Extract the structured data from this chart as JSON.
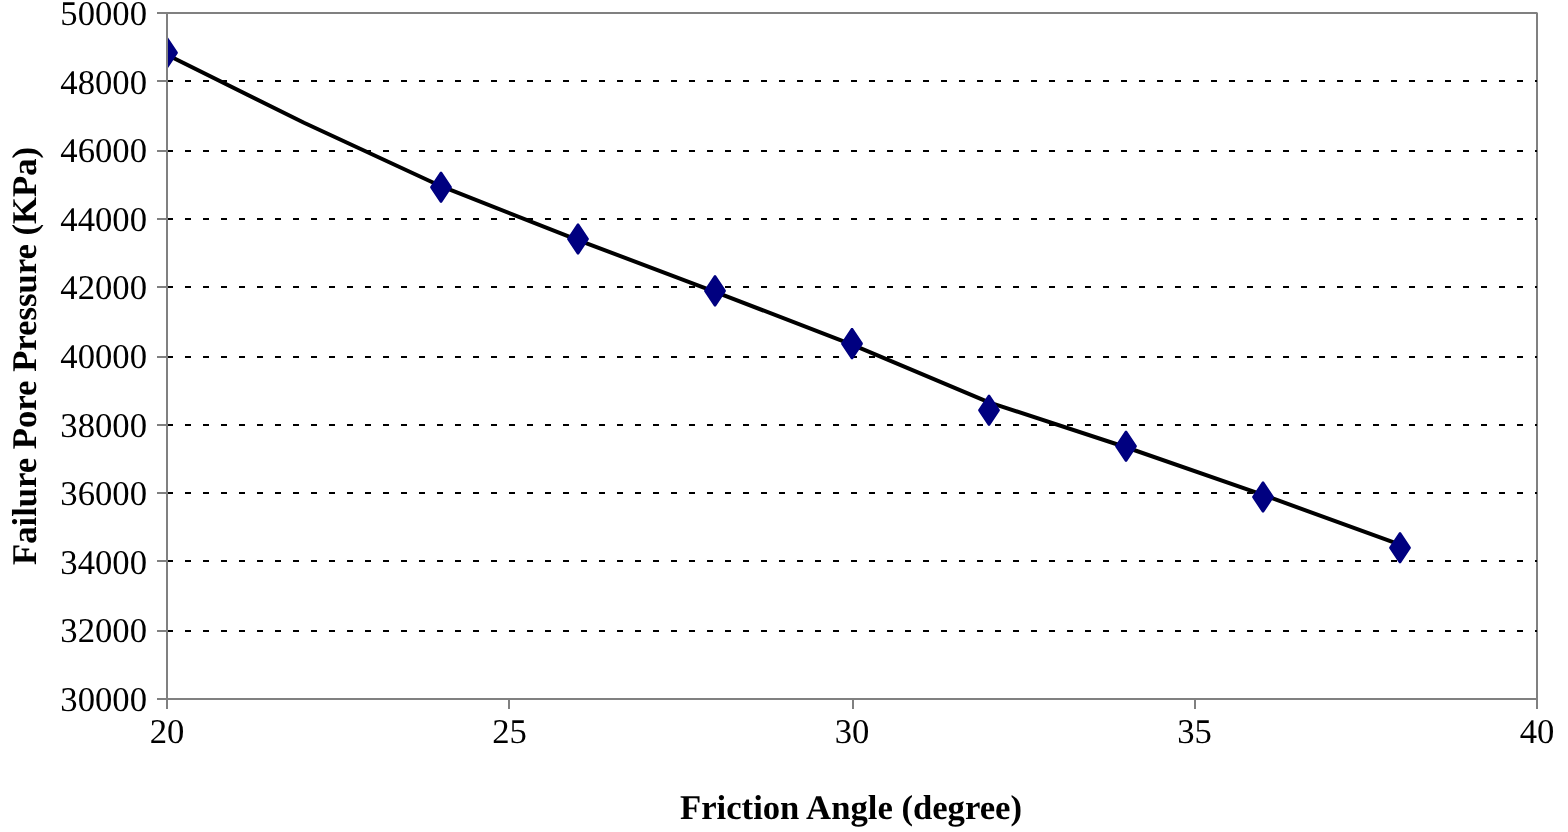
{
  "chart_data": {
    "type": "scatter",
    "xlabel": "Friction Angle (degree)",
    "ylabel": "Failure Pore Pressure (KPa)",
    "x": [
      20,
      24,
      26,
      28,
      30,
      32,
      34,
      36,
      38
    ],
    "series": [
      {
        "color": "#000080",
        "marker": "diamond",
        "values": [
          48840,
          44920,
          43410,
          41900,
          40360,
          38420,
          37370,
          35890,
          34410
        ]
      },
      {
        "type": "line",
        "color": "#000000",
        "x": [
          20,
          22,
          24,
          26,
          28,
          30,
          32,
          34,
          36,
          38
        ],
        "values": [
          48780,
          46800,
          44950,
          43380,
          41870,
          40330,
          38650,
          37340,
          35950,
          34500
        ],
        "line_style": "solid"
      }
    ],
    "xlim": [
      20,
      40
    ],
    "xticks": [
      20,
      25,
      30,
      35,
      40
    ],
    "ylim": [
      30000,
      50000
    ],
    "yticks": [
      30000,
      32000,
      34000,
      36000,
      38000,
      40000,
      42000,
      44000,
      46000,
      48000,
      50000
    ],
    "grid": "y"
  }
}
